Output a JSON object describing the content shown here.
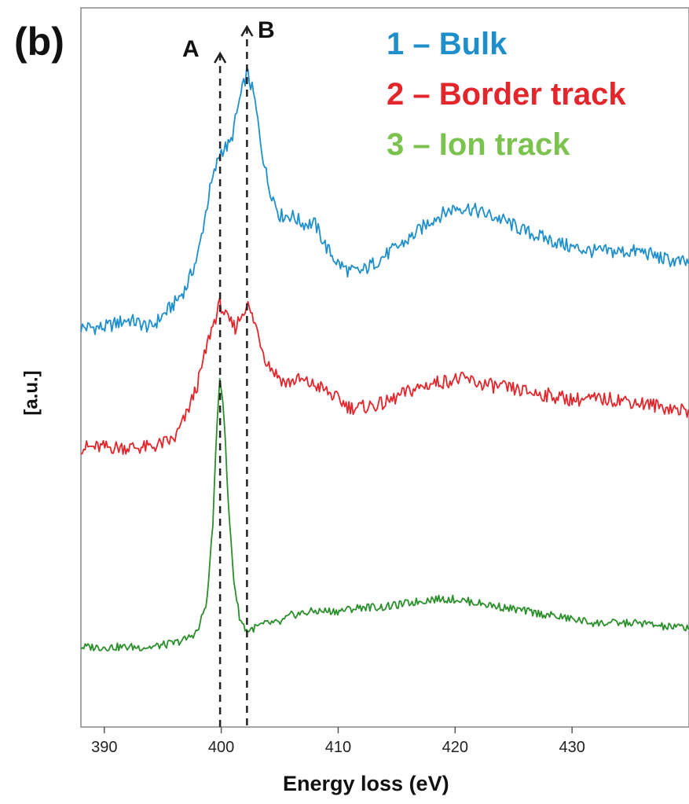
{
  "panel_label": "(b)",
  "chart_data": {
    "type": "line",
    "xlabel": "Energy loss (eV)",
    "ylabel": "[a.u.]",
    "xlim": [
      388,
      440
    ],
    "x_ticks": [
      390,
      400,
      410,
      420,
      430
    ],
    "y_ticks": "none",
    "grid": false,
    "legend_placement": "top-right",
    "legend": [
      {
        "label": "1 –  Bulk",
        "color": "#1f8fcc"
      },
      {
        "label": "2 –  Border track",
        "color": "#e3262b"
      },
      {
        "label": "3 –  Ion track",
        "color": "#7cc24f"
      }
    ],
    "annotations": [
      {
        "label": "A",
        "x": 399.9,
        "style": "dashed vertical line"
      },
      {
        "label": "B",
        "x": 402.2,
        "style": "dashed vertical line"
      }
    ],
    "series": [
      {
        "name": "1 –  Bulk",
        "color": "#1f8fcc",
        "x": [
          388,
          390,
          392,
          394,
          395,
          396,
          397,
          398,
          399,
          399.9,
          400.8,
          401.5,
          402.2,
          402.8,
          403.5,
          404,
          405,
          406,
          407,
          408,
          409,
          410,
          411,
          412,
          414,
          416,
          418,
          420,
          421,
          422,
          424,
          426,
          428,
          430,
          432,
          434,
          436,
          438,
          440
        ],
        "y": [
          5.0,
          5.0,
          5.1,
          5.0,
          5.15,
          5.3,
          5.5,
          5.9,
          6.7,
          7.2,
          7.3,
          7.8,
          8.2,
          7.9,
          7.2,
          6.8,
          6.4,
          6.4,
          6.3,
          6.3,
          6.0,
          5.8,
          5.7,
          5.7,
          5.9,
          6.1,
          6.35,
          6.5,
          6.5,
          6.45,
          6.35,
          6.2,
          6.1,
          6.0,
          5.95,
          5.95,
          5.95,
          5.85,
          5.8
        ]
      },
      {
        "name": "2 –  Border track",
        "color": "#e3262b",
        "x": [
          388,
          390,
          392,
          394,
          395,
          396,
          397,
          398,
          399,
          399.9,
          400.5,
          401.2,
          402.2,
          403,
          403.8,
          404.5,
          405.5,
          406.5,
          407.5,
          408.5,
          410,
          411,
          412,
          414,
          416,
          418,
          420,
          421,
          422,
          424,
          426,
          428,
          430,
          432,
          434,
          436,
          438,
          440
        ],
        "y": [
          3.5,
          3.5,
          3.5,
          3.5,
          3.55,
          3.6,
          3.9,
          4.3,
          4.9,
          5.3,
          5.1,
          5.0,
          5.3,
          5.0,
          4.6,
          4.45,
          4.3,
          4.35,
          4.3,
          4.25,
          4.1,
          4.0,
          4.0,
          4.05,
          4.2,
          4.3,
          4.35,
          4.35,
          4.3,
          4.25,
          4.2,
          4.15,
          4.1,
          4.1,
          4.1,
          4.05,
          4.0,
          3.95
        ]
      },
      {
        "name": "3 –  Ion track",
        "color": "#2a8f2a",
        "x": [
          388,
          390,
          392,
          394,
          396,
          397,
          398,
          398.8,
          399.3,
          399.7,
          399.9,
          400.2,
          400.6,
          401.1,
          401.6,
          402.2,
          403,
          404,
          405,
          406,
          408,
          410,
          412,
          414,
          416,
          418,
          420,
          422,
          424,
          426,
          428,
          430,
          432,
          434,
          436,
          438,
          440
        ],
        "y": [
          1.0,
          1.0,
          1.0,
          1.0,
          1.05,
          1.1,
          1.2,
          1.6,
          2.6,
          4.0,
          4.4,
          4.0,
          2.8,
          1.8,
          1.35,
          1.2,
          1.25,
          1.3,
          1.3,
          1.4,
          1.45,
          1.45,
          1.5,
          1.5,
          1.55,
          1.6,
          1.6,
          1.55,
          1.5,
          1.45,
          1.4,
          1.35,
          1.3,
          1.3,
          1.3,
          1.25,
          1.25
        ]
      }
    ]
  }
}
